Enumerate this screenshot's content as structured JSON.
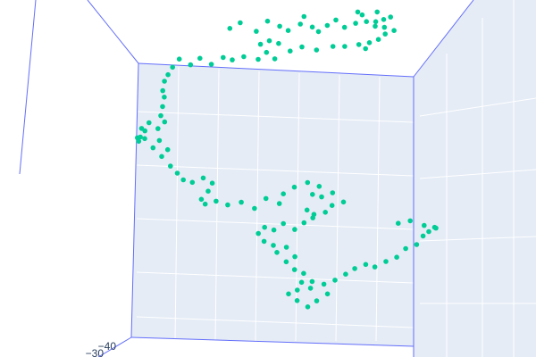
{
  "chart_data": {
    "type": "scatter",
    "subtype": "scatter3d",
    "title": "",
    "xlabel": "",
    "ylabel": "",
    "zlabel": "",
    "grid": true,
    "legend": "none",
    "visible_tick_labels": [
      "−40",
      "−30"
    ],
    "marker_color": "#00cc96",
    "pane_color": "#e5ecf6",
    "edge_color": "#636efa",
    "grid_color": "#ffffff",
    "series": [
      {
        "mode": "markers",
        "x": [
          -8.5,
          -7.6,
          -6.5,
          -5.5,
          -4.6,
          -3.8,
          -3.0,
          -2.6,
          -2.0,
          -1.4,
          -0.8,
          -0.2,
          0.6,
          1.4,
          2.0,
          1.6,
          2.2,
          3.0,
          3.6,
          3.2,
          3.0,
          3.6,
          4.2,
          4.4,
          3.8,
          3.2,
          2.6,
          2.2,
          1.6,
          0.6,
          -0.4,
          -1.6,
          -2.8,
          -3.8,
          -4.6,
          -5.4,
          -6.0,
          -5.6,
          -5.0,
          -6.2,
          -7.4,
          -8.2,
          -9.0,
          -10.0,
          -10.8,
          -11.6,
          -12.4,
          -13.0,
          -13.4,
          -13.6,
          -13.8,
          -13.6,
          -13.8,
          -14.0,
          -13.6,
          -14.2,
          -14.8,
          -15.2,
          -15.6,
          -15.4,
          -15.8,
          -15.6,
          -15.2,
          -14.6,
          -14.0,
          -13.4,
          -13.8,
          -13.2,
          -12.6,
          -12.2,
          -11.4,
          -10.6,
          -9.8,
          -10.2,
          -10.8,
          -10.4,
          -9.6,
          -8.6,
          -7.6,
          -6.6,
          -5.6,
          -4.6,
          -4.2,
          -3.4,
          -2.4,
          -1.4,
          -2.0,
          -1.2,
          -0.4,
          0.4,
          -0.4,
          -1.0,
          -1.8,
          -2.4,
          -2.0,
          -2.6,
          -3.4,
          -4.2,
          -5.0,
          -5.8,
          -6.2,
          -5.8,
          -5.0,
          -4.8,
          -4.0,
          -3.4,
          -4.0,
          -3.4,
          -2.6,
          -2.0,
          -2.2,
          -2.8,
          -3.2,
          -3.8,
          -3.2,
          -2.4,
          -1.6,
          -0.8,
          -1.0,
          -0.2,
          0.6,
          1.4,
          2.2,
          3.0,
          3.8,
          4.6,
          5.4,
          6.2,
          6.8,
          7.2,
          7.6,
          7.8,
          6.8,
          5.8,
          4.8
        ],
        "y": [
          2.0,
          2.3,
          1.9,
          2.5,
          2.2,
          1.7,
          2.4,
          2.8,
          2.1,
          1.6,
          2.2,
          2.7,
          2.0,
          2.4,
          2.9,
          3.2,
          2.6,
          2.1,
          2.7,
          3.1,
          2.5,
          2.2,
          2.8,
          1.9,
          1.5,
          1.2,
          0.8,
          0.5,
          0.9,
          0.6,
          0.7,
          0.3,
          0.6,
          0.4,
          0.8,
          1.1,
          0.7,
          0.2,
          -0.2,
          -0.4,
          -0.1,
          -0.5,
          -0.2,
          -0.6,
          -0.3,
          -0.7,
          -0.4,
          -0.9,
          -1.4,
          -2.0,
          -2.6,
          -3.2,
          -3.8,
          -4.4,
          -5.0,
          -5.4,
          -5.1,
          -5.6,
          -6.0,
          -5.5,
          -6.1,
          -6.5,
          -6.2,
          -6.8,
          -6.4,
          -7.0,
          -7.6,
          -8.2,
          -8.8,
          -9.2,
          -9.5,
          -9.1,
          -9.6,
          -10.1,
          -10.6,
          -11.1,
          -10.8,
          -11.2,
          -10.9,
          -11.3,
          -10.7,
          -11.0,
          -10.4,
          -9.8,
          -9.4,
          -9.8,
          -10.3,
          -10.6,
          -10.2,
          -10.8,
          -11.2,
          -11.6,
          -11.9,
          -11.5,
          -12.0,
          -12.5,
          -12.9,
          -12.6,
          -13.0,
          -12.7,
          -13.3,
          -13.8,
          -14.2,
          -14.6,
          -14.3,
          -14.9,
          -15.4,
          -15.9,
          -16.3,
          -16.8,
          -17.2,
          -16.9,
          -17.4,
          -17.8,
          -18.2,
          -18.6,
          -18.3,
          -17.7,
          -17.1,
          -16.7,
          -16.2,
          -15.9,
          -15.5,
          -15.8,
          -15.3,
          -14.9,
          -14.4,
          -14.0,
          -13.5,
          -13.1,
          -12.7,
          -12.9,
          -12.6,
          -12.4,
          -12.5
        ],
        "z": [
          12.0,
          11.4,
          12.6,
          11.8,
          12.2,
          11.3,
          12.4,
          11.6,
          12.0,
          11.2,
          11.9,
          12.4,
          11.6,
          12.1,
          11.5,
          11.9,
          12.5,
          11.7,
          12.2,
          11.4,
          12.0,
          12.6,
          11.8,
          12.3,
          11.6,
          12.1,
          11.3,
          12.0,
          12.5,
          11.7,
          12.2,
          11.5,
          11.9,
          12.4,
          11.6,
          12.1,
          11.4,
          11.9,
          12.3,
          11.5,
          12.0,
          11.2,
          11.8,
          12.3,
          11.6,
          12.0,
          11.4,
          11.9,
          12.2,
          11.6,
          12.1,
          11.5,
          12.0,
          12.4,
          11.7,
          12.2,
          11.5,
          12.0,
          12.3,
          11.6,
          12.1,
          11.4,
          11.9,
          12.3,
          11.6,
          12.0,
          11.5,
          12.1,
          11.7,
          12.2,
          11.6,
          12.0,
          11.4,
          11.9,
          12.4,
          11.7,
          12.1,
          11.5,
          12.0,
          12.3,
          11.6,
          12.0,
          11.4,
          11.9,
          12.2,
          11.6,
          12.1,
          11.5,
          12.0,
          12.4,
          11.7,
          12.2,
          11.5,
          11.9,
          12.3,
          11.6,
          12.1,
          11.4,
          11.8,
          12.3,
          11.6,
          12.0,
          11.5,
          12.1,
          11.7,
          12.2,
          11.6,
          12.0,
          11.4,
          11.9,
          12.4,
          11.7,
          12.1,
          11.5,
          12.0,
          12.3,
          11.6,
          12.0,
          11.4,
          11.9,
          12.2,
          11.6,
          12.1,
          11.5,
          12.0,
          12.4,
          11.7,
          12.2,
          11.5,
          11.9,
          12.3,
          11.6,
          12.1,
          11.4,
          11.8
        ]
      }
    ]
  }
}
